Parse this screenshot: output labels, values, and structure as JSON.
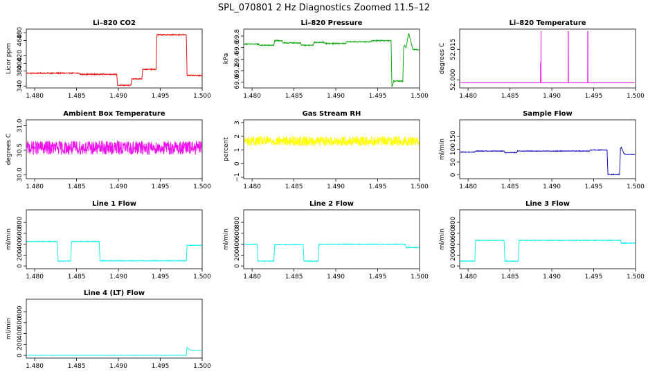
{
  "figure": {
    "title": "SPL_070801  2 Hz Diagnostics Zoomed 11.5–12"
  },
  "colors": {
    "red": "#ee1111",
    "green": "#11aa11",
    "magenta": "#ee11ee",
    "yellow": "#ffff00",
    "blue": "#1111bb",
    "cyan": "#11eeee"
  },
  "chart_data": [
    {
      "type": "line",
      "title": "Li–820 CO2",
      "ylabel": "Licor ppm",
      "color": "red",
      "xlim": [
        1.479,
        1.5
      ],
      "ylim": [
        335,
        490
      ],
      "xticks": [
        1.48,
        1.485,
        1.49,
        1.495,
        1.5
      ],
      "xticklabels": [
        "1.480",
        "1.485",
        "1.490",
        "1.495",
        "1.500"
      ],
      "yticks": [
        340,
        380,
        400,
        420,
        460,
        480
      ],
      "yticklabels": [
        "340",
        "380",
        "400",
        "420",
        "460",
        "480"
      ],
      "noise": 1.2,
      "x": [
        1.4791,
        1.4853,
        1.4854,
        1.4898,
        1.4899,
        1.4915,
        1.4916,
        1.4928,
        1.4929,
        1.4945,
        1.4946,
        1.4981,
        1.4982,
        1.4985,
        1.5
      ],
      "y": [
        374,
        374,
        371,
        371,
        342,
        342,
        359,
        359,
        384,
        384,
        475,
        475,
        369,
        368,
        368
      ]
    },
    {
      "type": "line",
      "title": "Li–820 Pressure",
      "ylabel": "kPa",
      "color": "green",
      "xlim": [
        1.479,
        1.5
      ],
      "ylim": [
        68.9,
        69.92
      ],
      "xticks": [
        1.48,
        1.485,
        1.49,
        1.495,
        1.5
      ],
      "xticklabels": [
        "1.480",
        "1.485",
        "1.490",
        "1.495",
        "1.500"
      ],
      "yticks": [
        69.0,
        69.2,
        69.4,
        69.6,
        69.8
      ],
      "yticklabels": [
        "69.0",
        "69.2",
        "69.4",
        "69.6",
        "69.8"
      ],
      "noise": 0.008,
      "x": [
        1.4791,
        1.4808,
        1.4809,
        1.4826,
        1.4827,
        1.4836,
        1.4837,
        1.4858,
        1.4859,
        1.4873,
        1.4874,
        1.4886,
        1.4887,
        1.4912,
        1.4913,
        1.4942,
        1.4943,
        1.4966,
        1.4967,
        1.4968,
        1.4969,
        1.498,
        1.4981,
        1.4982,
        1.4984,
        1.4987,
        1.4992,
        1.4999
      ],
      "y": [
        69.66,
        69.66,
        69.64,
        69.64,
        69.72,
        69.72,
        69.68,
        69.68,
        69.64,
        69.64,
        69.69,
        69.69,
        69.67,
        69.67,
        69.7,
        69.7,
        69.72,
        69.72,
        68.92,
        68.95,
        69.02,
        69.02,
        69.6,
        69.64,
        69.6,
        69.85,
        69.57,
        69.56
      ]
    },
    {
      "type": "line",
      "title": "Li–820 Temperature",
      "ylabel": "degrees C",
      "color": "magenta",
      "xlim": [
        1.479,
        1.5
      ],
      "ylim": [
        51.996,
        52.025
      ],
      "xticks": [
        1.48,
        1.485,
        1.49,
        1.495,
        1.5
      ],
      "xticklabels": [
        "1.480",
        "1.485",
        "1.490",
        "1.495",
        "1.500"
      ],
      "yticks": [
        52.0,
        52.015
      ],
      "yticklabels": [
        "52.000",
        "52.015"
      ],
      "noise": 0,
      "x": [
        1.4791,
        1.48865,
        1.48866,
        1.48867,
        1.4887,
        1.48871,
        1.48872,
        1.49195,
        1.49196,
        1.49197,
        1.49198,
        1.49199,
        1.49428,
        1.49429,
        1.4943,
        1.49431,
        1.49432,
        1.4999
      ],
      "y": [
        51.9985,
        51.9985,
        52.0085,
        51.9985,
        51.9985,
        52.024,
        51.9985,
        51.9985,
        52.024,
        51.9985,
        52.024,
        51.9985,
        51.9985,
        52.024,
        51.9985,
        52.024,
        51.9985,
        51.9985
      ]
    },
    {
      "type": "line",
      "title": "Ambient Box Temperature",
      "ylabel": "degrees C",
      "color": "magenta",
      "xlim": [
        1.479,
        1.5
      ],
      "ylim": [
        29.92,
        31.12
      ],
      "xticks": [
        1.48,
        1.485,
        1.49,
        1.495,
        1.5
      ],
      "xticklabels": [
        "1.480",
        "1.485",
        "1.490",
        "1.495",
        "1.500"
      ],
      "yticks": [
        30.0,
        30.5,
        31.0
      ],
      "yticklabels": [
        "30.0",
        "30.5",
        "31.0"
      ],
      "noise": 0.14,
      "x": [
        1.4791,
        1.4999
      ],
      "y": [
        30.55,
        30.55
      ]
    },
    {
      "type": "line",
      "title": "Gas Stream RH",
      "ylabel": "percent",
      "color": "yellow",
      "xlim": [
        1.479,
        1.5
      ],
      "ylim": [
        -1.1,
        3.2
      ],
      "xticks": [
        1.48,
        1.485,
        1.49,
        1.495,
        1.5
      ],
      "xticklabels": [
        "1.480",
        "1.485",
        "1.490",
        "1.495",
        "1.500"
      ],
      "yticks": [
        -1,
        0,
        1,
        2,
        3
      ],
      "yticklabels": [
        "−1",
        "0",
        "1",
        "2",
        "3"
      ],
      "noise": 0.35,
      "x": [
        1.4791,
        1.4999
      ],
      "y": [
        1.65,
        1.65
      ]
    },
    {
      "type": "line",
      "title": "Sample Flow",
      "ylabel": "ml/min",
      "color": "blue",
      "xlim": [
        1.479,
        1.5
      ],
      "ylim": [
        -15,
        215
      ],
      "xticks": [
        1.48,
        1.485,
        1.49,
        1.495,
        1.5
      ],
      "xticklabels": [
        "1.480",
        "1.485",
        "1.490",
        "1.495",
        "1.500"
      ],
      "yticks": [
        0,
        50,
        100,
        150
      ],
      "yticklabels": [
        "0",
        "50",
        "100",
        "150"
      ],
      "noise": 1.2,
      "x": [
        1.4791,
        1.4808,
        1.4809,
        1.4843,
        1.4844,
        1.4858,
        1.4859,
        1.4945,
        1.4946,
        1.4966,
        1.4967,
        1.4981,
        1.4982,
        1.4983,
        1.4986,
        1.4988,
        1.4999
      ],
      "y": [
        89,
        89,
        93,
        93,
        87,
        87,
        93,
        93,
        97,
        97,
        2,
        2,
        105,
        108,
        84,
        80,
        79
      ]
    },
    {
      "type": "line",
      "title": "Line 1 Flow",
      "ylabel": "ml/min",
      "color": "cyan",
      "xlim": [
        1.479,
        1.5
      ],
      "ylim": [
        -50,
        1030
      ],
      "xticks": [
        1.48,
        1.485,
        1.49,
        1.495,
        1.5
      ],
      "xticklabels": [
        "1.480",
        "1.485",
        "1.490",
        "1.495",
        "1.500"
      ],
      "yticks": [
        0,
        200,
        400,
        600,
        800
      ],
      "yticklabels": [
        "0",
        "200",
        "400",
        "600",
        "800"
      ],
      "noise": 6,
      "x": [
        1.4791,
        1.4827,
        1.4828,
        1.4843,
        1.4844,
        1.4877,
        1.4878,
        1.4981,
        1.4982,
        1.4999
      ],
      "y": [
        450,
        450,
        90,
        90,
        450,
        450,
        95,
        95,
        380,
        380
      ]
    },
    {
      "type": "line",
      "title": "Line 2 Flow",
      "ylabel": "ml/min",
      "color": "cyan",
      "xlim": [
        1.479,
        1.5
      ],
      "ylim": [
        -50,
        1030
      ],
      "xticks": [
        1.48,
        1.485,
        1.49,
        1.495,
        1.5
      ],
      "xticklabels": [
        "1.480",
        "1.485",
        "1.490",
        "1.495",
        "1.500"
      ],
      "yticks": [
        0,
        200,
        400,
        600,
        800
      ],
      "yticklabels": [
        "0",
        "200",
        "400",
        "600",
        "800"
      ],
      "noise": 6,
      "x": [
        1.4791,
        1.4806,
        1.4807,
        1.4826,
        1.4827,
        1.4861,
        1.4862,
        1.4879,
        1.488,
        1.4983,
        1.4984,
        1.4999
      ],
      "y": [
        400,
        400,
        90,
        90,
        395,
        395,
        90,
        90,
        400,
        400,
        340,
        340
      ]
    },
    {
      "type": "line",
      "title": "Line 3 Flow",
      "ylabel": "ml/min",
      "color": "cyan",
      "xlim": [
        1.479,
        1.5
      ],
      "ylim": [
        -50,
        1030
      ],
      "xticks": [
        1.48,
        1.485,
        1.49,
        1.495,
        1.5
      ],
      "xticklabels": [
        "1.480",
        "1.485",
        "1.490",
        "1.495",
        "1.500"
      ],
      "yticks": [
        0,
        200,
        400,
        600,
        800
      ],
      "yticklabels": [
        "0",
        "200",
        "400",
        "600",
        "800"
      ],
      "noise": 6,
      "x": [
        1.4791,
        1.4808,
        1.4809,
        1.4843,
        1.4844,
        1.486,
        1.4861,
        1.4982,
        1.4983,
        1.4999
      ],
      "y": [
        90,
        90,
        470,
        470,
        90,
        90,
        470,
        470,
        420,
        420
      ]
    },
    {
      "type": "line",
      "title": "Line 4 (LT) Flow",
      "ylabel": "ml/min",
      "color": "cyan",
      "xlim": [
        1.479,
        1.5
      ],
      "ylim": [
        -50,
        1030
      ],
      "xticks": [
        1.48,
        1.485,
        1.49,
        1.495,
        1.5
      ],
      "xticklabels": [
        "1.480",
        "1.485",
        "1.490",
        "1.495",
        "1.500"
      ],
      "yticks": [
        0,
        200,
        400,
        600,
        800
      ],
      "yticklabels": [
        "0",
        "200",
        "400",
        "600",
        "800"
      ],
      "noise": 2,
      "x": [
        1.4791,
        1.4981,
        1.4982,
        1.4984,
        1.4987,
        1.4999
      ],
      "y": [
        2,
        2,
        150,
        110,
        90,
        90
      ]
    }
  ]
}
